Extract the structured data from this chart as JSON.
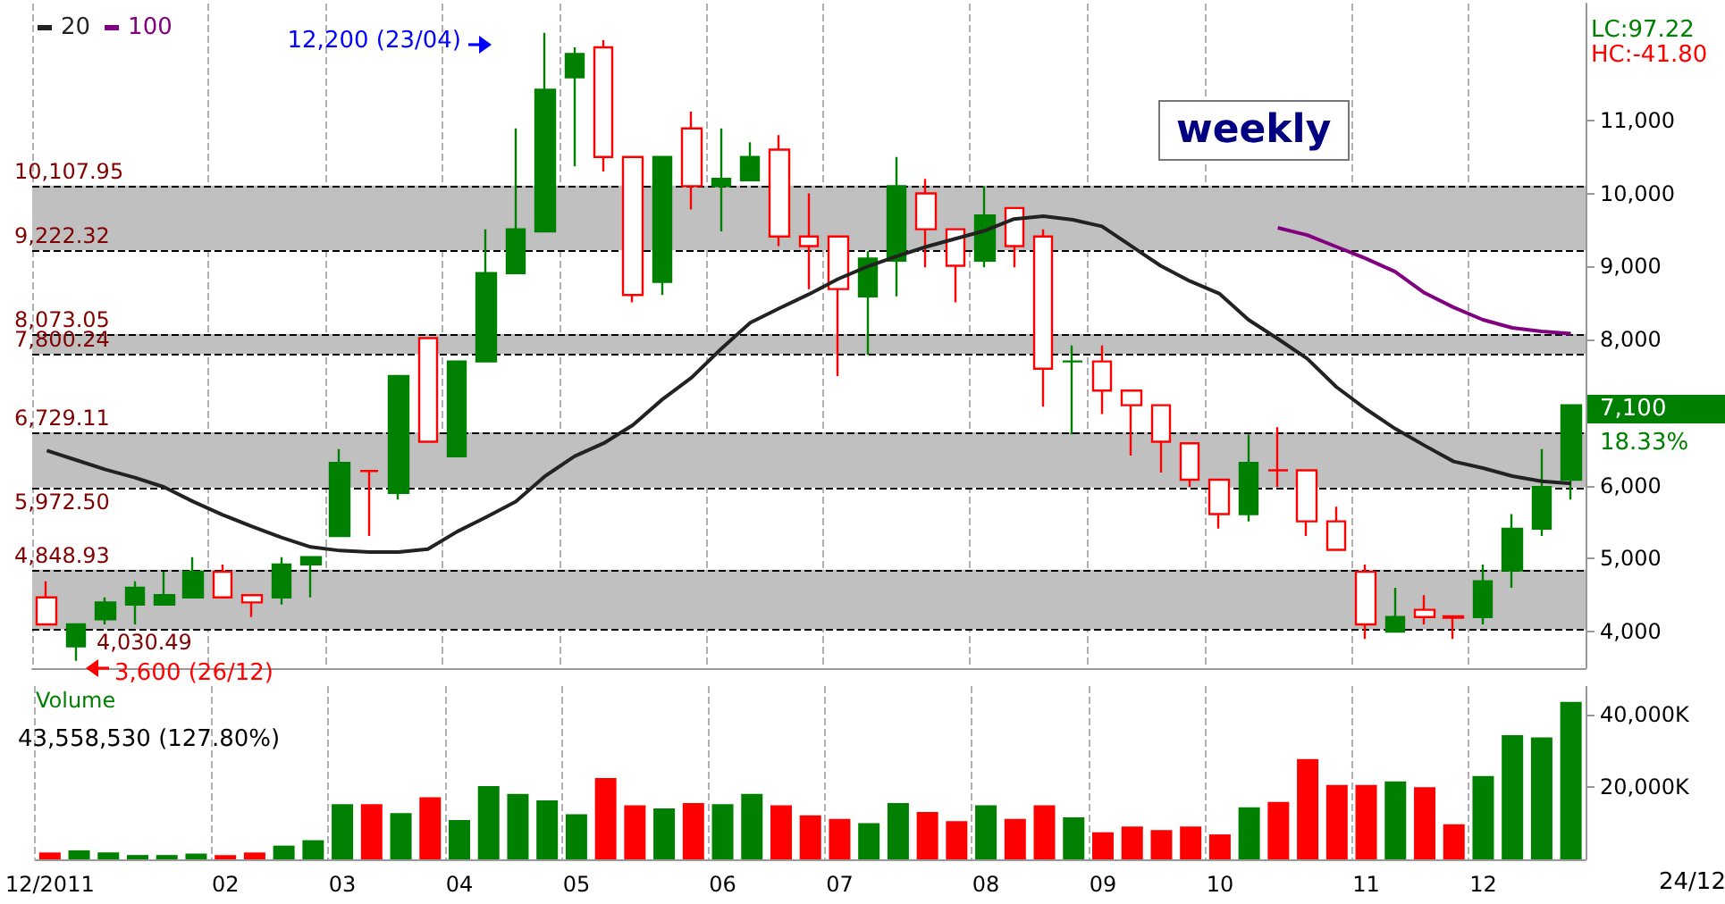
{
  "chart_data": [
    {
      "type": "candlestick",
      "title": "weekly",
      "categories": [
        null,
        null,
        null,
        null,
        null,
        null,
        null,
        null,
        null,
        null,
        null,
        null,
        null,
        null,
        null,
        null,
        null,
        null,
        null,
        null,
        null,
        null,
        null,
        null,
        null,
        null,
        null,
        null,
        null,
        null,
        null,
        null,
        null,
        null,
        null,
        null,
        null,
        null,
        null,
        null,
        null,
        null,
        null,
        null,
        null,
        null,
        null,
        null,
        null,
        null,
        null,
        null,
        null
      ],
      "ohlc": [
        [
          4470,
          4690,
          4100,
          4100
        ],
        [
          3800,
          4100,
          3600,
          4100
        ],
        [
          4170,
          4470,
          4100,
          4400
        ],
        [
          4370,
          4690,
          4100,
          4600
        ],
        [
          4370,
          4820,
          4370,
          4500
        ],
        [
          4470,
          5020,
          4470,
          4820
        ],
        [
          4820,
          4920,
          4470,
          4470
        ],
        [
          4500,
          4500,
          4200,
          4400
        ],
        [
          4470,
          5020,
          4370,
          4920
        ],
        [
          4920,
          5020,
          4470,
          5020
        ],
        [
          5310,
          6500,
          5310,
          6310
        ],
        [
          6200,
          6200,
          5310,
          6200
        ],
        [
          5900,
          7500,
          5810,
          7500
        ],
        [
          8020,
          8020,
          6600,
          6600
        ],
        [
          6400,
          7700,
          6400,
          7700
        ],
        [
          7700,
          9510,
          7700,
          8910
        ],
        [
          8910,
          10890,
          8910,
          9510
        ],
        [
          9480,
          12200,
          9480,
          11420
        ],
        [
          11590,
          12000,
          10370,
          11910
        ],
        [
          12000,
          12100,
          10300,
          10500
        ],
        [
          10500,
          10500,
          8510,
          8610
        ],
        [
          8790,
          10500,
          8610,
          10500
        ],
        [
          10890,
          11120,
          9780,
          10100
        ],
        [
          10100,
          10890,
          9480,
          10200
        ],
        [
          10180,
          10700,
          10180,
          10500
        ],
        [
          10600,
          10800,
          9280,
          9410
        ],
        [
          9410,
          10000,
          8690,
          9280
        ],
        [
          9410,
          9410,
          7500,
          8690
        ],
        [
          8590,
          9210,
          7790,
          9110
        ],
        [
          9080,
          10500,
          8590,
          10100
        ],
        [
          10000,
          10200,
          8990,
          9510
        ],
        [
          9510,
          9510,
          8510,
          9010
        ],
        [
          9080,
          10100,
          8990,
          9700
        ],
        [
          9800,
          9800,
          8990,
          9280
        ],
        [
          9410,
          9510,
          7080,
          7600
        ],
        [
          7700,
          7920,
          6700,
          7700
        ],
        [
          7700,
          7920,
          6980,
          7300
        ],
        [
          7300,
          7300,
          6410,
          7100
        ],
        [
          7100,
          7100,
          6180,
          6600
        ],
        [
          6580,
          6580,
          5980,
          6080
        ],
        [
          6080,
          6080,
          5410,
          5610
        ],
        [
          5610,
          6700,
          5510,
          6310
        ],
        [
          6210,
          6800,
          5980,
          6210
        ],
        [
          6210,
          6210,
          5310,
          5510
        ],
        [
          5510,
          5710,
          5120,
          5120
        ],
        [
          4820,
          4920,
          3900,
          4100
        ],
        [
          4000,
          4600,
          4000,
          4200
        ],
        [
          4300,
          4500,
          4100,
          4200
        ],
        [
          4210,
          4210,
          3900,
          4190
        ],
        [
          4200,
          4920,
          4100,
          4690
        ],
        [
          4840,
          5610,
          4600,
          5410
        ],
        [
          5410,
          6500,
          5310,
          5980
        ],
        [
          6080,
          7100,
          5810,
          7100
        ]
      ],
      "colors": [
        "#ff0000",
        "#008000",
        "#008000",
        "#008000",
        "#008000",
        "#008000",
        "#ff0000",
        "#ff0000",
        "#008000",
        "#008000",
        "#008000",
        "#ff0000",
        "#008000",
        "#ff0000",
        "#008000",
        "#008000",
        "#008000",
        "#008000",
        "#008000",
        "#ff0000",
        "#ff0000",
        "#008000",
        "#ff0000",
        "#008000",
        "#008000",
        "#ff0000",
        "#ff0000",
        "#ff0000",
        "#008000",
        "#008000",
        "#ff0000",
        "#ff0000",
        "#008000",
        "#ff0000",
        "#ff0000",
        "#008000",
        "#ff0000",
        "#ff0000",
        "#ff0000",
        "#ff0000",
        "#ff0000",
        "#008000",
        "#ff0000",
        "#ff0000",
        "#ff0000",
        "#ff0000",
        "#008000",
        "#ff0000",
        "#ff0000",
        "#008000",
        "#008000",
        "#008000",
        "#008000"
      ],
      "series": [
        {
          "name": "20",
          "type": "line",
          "color": "#222222",
          "values": [
            6480,
            6350,
            6220,
            6110,
            5980,
            5780,
            5600,
            5440,
            5290,
            5160,
            5110,
            5090,
            5090,
            5130,
            5370,
            5570,
            5780,
            6130,
            6400,
            6580,
            6830,
            7180,
            7480,
            7870,
            8230,
            8430,
            8620,
            8830,
            9000,
            9140,
            9270,
            9380,
            9490,
            9650,
            9690,
            9640,
            9550,
            9280,
            9010,
            8800,
            8630,
            8270,
            8010,
            7740,
            7350,
            7050,
            6780,
            6550,
            6330,
            6240,
            6130,
            6060,
            6030
          ]
        },
        {
          "name": "100",
          "type": "line",
          "color": "#800080",
          "values": [
            null,
            null,
            null,
            null,
            null,
            null,
            null,
            null,
            null,
            null,
            null,
            null,
            null,
            null,
            null,
            null,
            null,
            null,
            null,
            null,
            null,
            null,
            null,
            null,
            null,
            null,
            null,
            null,
            null,
            null,
            null,
            null,
            null,
            null,
            null,
            null,
            null,
            null,
            null,
            null,
            null,
            null,
            9530,
            9430,
            9270,
            9110,
            8930,
            8640,
            8440,
            8270,
            8160,
            8110,
            8080
          ]
        }
      ],
      "ylim": [
        3500,
        12600
      ],
      "yticks": [
        {
          "value": 4000,
          "label": "4,000"
        },
        {
          "value": 5000,
          "label": "5,000"
        },
        {
          "value": 6000,
          "label": "6,000"
        },
        {
          "value": 7000,
          "label": null
        },
        {
          "value": 8000,
          "label": "8,000"
        },
        {
          "value": 9000,
          "label": "9,000"
        },
        {
          "value": 10000,
          "label": "10,000"
        },
        {
          "value": 11000,
          "label": "11,000"
        }
      ],
      "ref_lines": [
        {
          "axis": "y",
          "value": 10107.95,
          "label": "10,107.95",
          "color": "#000000",
          "line_style": "dashed"
        },
        {
          "axis": "y",
          "value": 9222.32,
          "label": "9,222.32",
          "color": "#000000",
          "line_style": "dashed"
        },
        {
          "axis": "y",
          "value": 8073.05,
          "label": "8,073.05",
          "color": "#000000",
          "line_style": "dashed"
        },
        {
          "axis": "y",
          "value": 7800.24,
          "label": "7,800.24",
          "color": "#000000",
          "line_style": "dashed"
        },
        {
          "axis": "y",
          "value": 6729.11,
          "label": "6,729.11",
          "color": "#000000",
          "line_style": "dashed"
        },
        {
          "axis": "y",
          "value": 5972.5,
          "label": "5,972.50",
          "color": "#000000",
          "line_style": "dashed"
        },
        {
          "axis": "y",
          "value": 4848.93,
          "label": "4,848.93",
          "color": "#000000",
          "line_style": "dashed"
        },
        {
          "axis": "y",
          "value": 4030.49,
          "label": "4,030.49",
          "color": "#000000",
          "line_style": "dashed"
        }
      ],
      "bands": [
        {
          "axis": "y",
          "from": 9222.32,
          "to": 10107.95,
          "color": "#c0c0c0"
        },
        {
          "axis": "y",
          "from": 7800.24,
          "to": 8073.05,
          "color": "#c0c0c0"
        },
        {
          "axis": "y",
          "from": 5972.5,
          "to": 6729.11,
          "color": "#c0c0c0"
        },
        {
          "axis": "y",
          "from": 4030.49,
          "to": 4848.93,
          "color": "#c0c0c0"
        }
      ],
      "annotations": [
        "12,200 (23/04)",
        "3,600 (26/12)",
        "7,100",
        "18.33%",
        "LC:97.22",
        "HC:-41.80"
      ],
      "legend": "top left",
      "grid": "x",
      "tick_labels": "y"
    },
    {
      "type": "bar",
      "title": "Volume",
      "categories": [
        "12/2011",
        null,
        null,
        null,
        null,
        null,
        "02",
        null,
        null,
        null,
        "03",
        null,
        null,
        null,
        "04",
        null,
        null,
        null,
        "05",
        null,
        null,
        null,
        null,
        "06",
        null,
        null,
        null,
        "07",
        null,
        null,
        null,
        null,
        "08",
        null,
        null,
        null,
        "09",
        null,
        null,
        null,
        "10",
        null,
        null,
        null,
        null,
        "11",
        null,
        null,
        null,
        "12",
        null,
        null,
        null
      ],
      "values": [
        1900,
        2500,
        1900,
        1200,
        1200,
        1600,
        1200,
        1900,
        3800,
        5300,
        15300,
        15300,
        12800,
        17200,
        10900,
        20300,
        18100,
        16300,
        12500,
        22500,
        15000,
        14100,
        15600,
        15300,
        18100,
        15000,
        12200,
        11200,
        10000,
        15600,
        13100,
        10600,
        15000,
        11200,
        15000,
        11600,
        7500,
        9100,
        8100,
        9100,
        6900,
        14400,
        15900,
        27800,
        20600,
        20600,
        21600,
        20000,
        9700,
        23100,
        34400,
        33800,
        43600
      ],
      "colors": [
        "#ff0000",
        "#008000",
        "#008000",
        "#008000",
        "#008000",
        "#008000",
        "#ff0000",
        "#ff0000",
        "#008000",
        "#008000",
        "#008000",
        "#ff0000",
        "#008000",
        "#ff0000",
        "#008000",
        "#008000",
        "#008000",
        "#008000",
        "#008000",
        "#ff0000",
        "#ff0000",
        "#008000",
        "#ff0000",
        "#008000",
        "#008000",
        "#ff0000",
        "#ff0000",
        "#ff0000",
        "#008000",
        "#008000",
        "#ff0000",
        "#ff0000",
        "#008000",
        "#ff0000",
        "#ff0000",
        "#008000",
        "#ff0000",
        "#ff0000",
        "#ff0000",
        "#ff0000",
        "#ff0000",
        "#008000",
        "#ff0000",
        "#ff0000",
        "#ff0000",
        "#ff0000",
        "#008000",
        "#ff0000",
        "#ff0000",
        "#008000",
        "#008000",
        "#008000",
        "#008000"
      ],
      "ylim": [
        0,
        48000
      ],
      "yticks": [
        {
          "value": 20000,
          "label": "20,000K"
        },
        {
          "value": 40000,
          "label": "40,000K"
        }
      ],
      "annotations": [
        "43,558,530 (127.80%)",
        "24/12"
      ],
      "grid": "x"
    }
  ]
}
